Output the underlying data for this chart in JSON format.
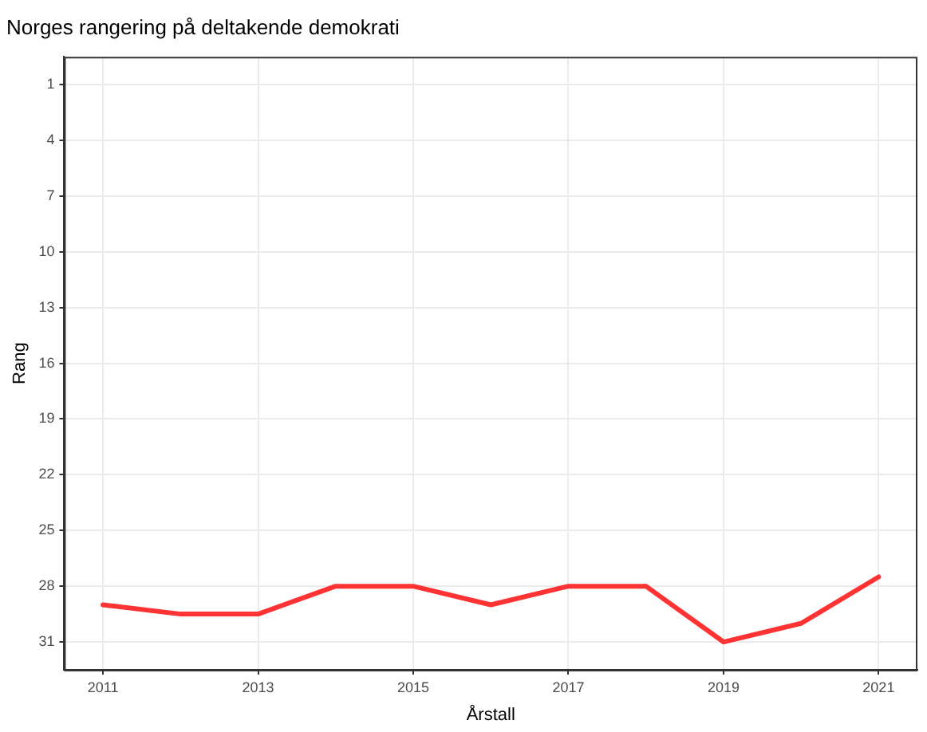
{
  "chart_data": {
    "type": "line",
    "title": "Norges rangering på deltakende demokrati",
    "xlabel": "Årstall",
    "ylabel": "Rang",
    "x": [
      2011,
      2012,
      2013,
      2014,
      2015,
      2016,
      2017,
      2018,
      2019,
      2020,
      2021
    ],
    "series": [
      {
        "color": "#ff3333",
        "values": [
          29,
          29.5,
          29.5,
          28,
          28,
          29,
          28,
          28,
          31,
          30,
          27.5
        ]
      }
    ],
    "xlim": [
      2010.5,
      2021.5
    ],
    "xticks": [
      2011,
      2013,
      2015,
      2017,
      2019,
      2021
    ],
    "ylim": [
      32.5,
      -0.5
    ],
    "yticks": [
      1,
      4,
      7,
      10,
      13,
      16,
      19,
      22,
      25,
      28,
      31
    ],
    "grid": true,
    "legend": false,
    "marker": "none",
    "line_style": "solid"
  }
}
